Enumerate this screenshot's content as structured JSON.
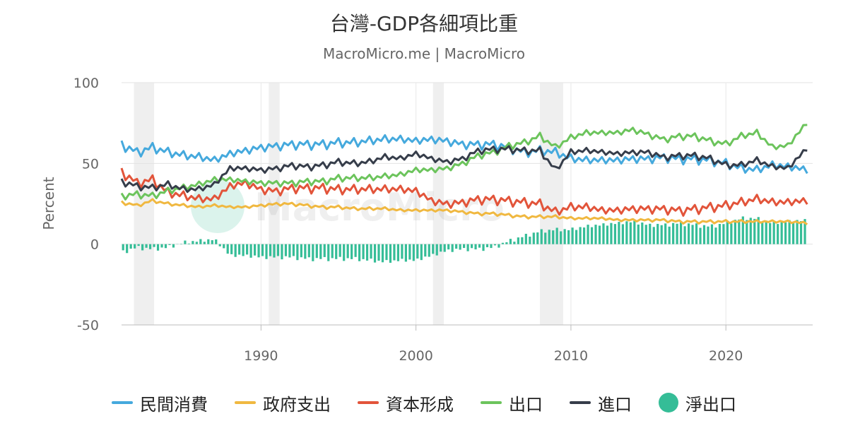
{
  "chart_data": {
    "type": "line",
    "title": "台灣-GDP各細項比重",
    "subtitle": "MacroMicro.me | MacroMicro",
    "ylabel": "Percent",
    "xlabel": "",
    "ylim": [
      -50,
      100
    ],
    "xlim": [
      1981,
      2025.6
    ],
    "y_ticks": [
      "100",
      "50",
      "0",
      "-50"
    ],
    "x_ticks": [
      "1990",
      "2000",
      "2010",
      "2020"
    ],
    "watermark": "MacroMicro",
    "legend_position": "bottom",
    "grid": true,
    "shaded_periods": [
      [
        1981.8,
        1983.1
      ],
      [
        1990.5,
        1991.2
      ],
      [
        2001.1,
        2001.8
      ],
      [
        2008.0,
        2009.5
      ]
    ],
    "series": [
      {
        "name": "民間消費",
        "kind": "line",
        "color": "#45a9dd",
        "points": [
          [
            1981,
            62
          ],
          [
            1982,
            57
          ],
          [
            1983,
            60
          ],
          [
            1984,
            57
          ],
          [
            1985,
            55
          ],
          [
            1986,
            54
          ],
          [
            1987,
            52
          ],
          [
            1988,
            56
          ],
          [
            1989,
            58
          ],
          [
            1990,
            60
          ],
          [
            1991,
            61
          ],
          [
            1992,
            62
          ],
          [
            1993,
            62
          ],
          [
            1994,
            62
          ],
          [
            1995,
            63
          ],
          [
            1996,
            63
          ],
          [
            1997,
            64
          ],
          [
            1998,
            65
          ],
          [
            1999,
            65
          ],
          [
            2000,
            64
          ],
          [
            2001,
            65
          ],
          [
            2002,
            64
          ],
          [
            2003,
            62
          ],
          [
            2004,
            62
          ],
          [
            2005,
            62
          ],
          [
            2006,
            60
          ],
          [
            2007,
            57
          ],
          [
            2008,
            58
          ],
          [
            2009,
            57
          ],
          [
            2010,
            53
          ],
          [
            2011,
            52
          ],
          [
            2012,
            52
          ],
          [
            2013,
            52
          ],
          [
            2014,
            53
          ],
          [
            2015,
            53
          ],
          [
            2016,
            54
          ],
          [
            2017,
            53
          ],
          [
            2018,
            53
          ],
          [
            2019,
            52
          ],
          [
            2020,
            50
          ],
          [
            2021,
            47
          ],
          [
            2022,
            46
          ],
          [
            2023,
            49
          ],
          [
            2024,
            48
          ],
          [
            2025.3,
            46
          ]
        ]
      },
      {
        "name": "政府支出",
        "kind": "line",
        "color": "#f0b840",
        "points": [
          [
            1981,
            26
          ],
          [
            1982,
            24
          ],
          [
            1983,
            27
          ],
          [
            1984,
            25
          ],
          [
            1985,
            24
          ],
          [
            1986,
            23
          ],
          [
            1987,
            24
          ],
          [
            1988,
            23
          ],
          [
            1989,
            23
          ],
          [
            1990,
            24
          ],
          [
            1991,
            25
          ],
          [
            1992,
            25
          ],
          [
            1993,
            24
          ],
          [
            1994,
            23
          ],
          [
            1995,
            23
          ],
          [
            1996,
            22
          ],
          [
            1997,
            22
          ],
          [
            1998,
            22
          ],
          [
            1999,
            21
          ],
          [
            2000,
            21
          ],
          [
            2001,
            21
          ],
          [
            2002,
            21
          ],
          [
            2003,
            20
          ],
          [
            2004,
            19
          ],
          [
            2005,
            19
          ],
          [
            2006,
            18
          ],
          [
            2007,
            17
          ],
          [
            2008,
            17
          ],
          [
            2009,
            17
          ],
          [
            2010,
            16
          ],
          [
            2011,
            16
          ],
          [
            2012,
            16
          ],
          [
            2013,
            15
          ],
          [
            2014,
            15
          ],
          [
            2015,
            15
          ],
          [
            2016,
            15
          ],
          [
            2017,
            14
          ],
          [
            2018,
            14
          ],
          [
            2019,
            14
          ],
          [
            2020,
            14
          ],
          [
            2021,
            14
          ],
          [
            2022,
            14
          ],
          [
            2023,
            14
          ],
          [
            2024,
            14
          ],
          [
            2025.3,
            13
          ]
        ]
      },
      {
        "name": "資本形成",
        "kind": "line",
        "color": "#e2543a",
        "points": [
          [
            1981,
            45
          ],
          [
            1982,
            38
          ],
          [
            1983,
            40
          ],
          [
            1984,
            32
          ],
          [
            1985,
            30
          ],
          [
            1986,
            28
          ],
          [
            1987,
            28
          ],
          [
            1988,
            36
          ],
          [
            1989,
            38
          ],
          [
            1990,
            34
          ],
          [
            1991,
            33
          ],
          [
            1992,
            35
          ],
          [
            1993,
            35
          ],
          [
            1994,
            35
          ],
          [
            1995,
            34
          ],
          [
            1996,
            34
          ],
          [
            1997,
            34
          ],
          [
            1998,
            34
          ],
          [
            1999,
            34
          ],
          [
            2000,
            33
          ],
          [
            2001,
            27
          ],
          [
            2002,
            25
          ],
          [
            2003,
            26
          ],
          [
            2004,
            28
          ],
          [
            2005,
            28
          ],
          [
            2006,
            27
          ],
          [
            2007,
            26
          ],
          [
            2008,
            25
          ],
          [
            2009,
            20
          ],
          [
            2010,
            23
          ],
          [
            2011,
            23
          ],
          [
            2012,
            21
          ],
          [
            2013,
            21
          ],
          [
            2014,
            22
          ],
          [
            2015,
            22
          ],
          [
            2016,
            22
          ],
          [
            2017,
            21
          ],
          [
            2018,
            22
          ],
          [
            2019,
            23
          ],
          [
            2020,
            24
          ],
          [
            2021,
            26
          ],
          [
            2022,
            28
          ],
          [
            2023,
            26
          ],
          [
            2024,
            26
          ],
          [
            2025.3,
            27
          ]
        ]
      },
      {
        "name": "出口",
        "kind": "line",
        "color": "#6cc45c",
        "points": [
          [
            1981,
            30
          ],
          [
            1982,
            31
          ],
          [
            1983,
            30
          ],
          [
            1984,
            33
          ],
          [
            1985,
            35
          ],
          [
            1986,
            37
          ],
          [
            1987,
            40
          ],
          [
            1988,
            40
          ],
          [
            1989,
            39
          ],
          [
            1990,
            38
          ],
          [
            1991,
            38
          ],
          [
            1992,
            38
          ],
          [
            1993,
            39
          ],
          [
            1994,
            39
          ],
          [
            1995,
            41
          ],
          [
            1996,
            41
          ],
          [
            1997,
            41
          ],
          [
            1998,
            42
          ],
          [
            1999,
            43
          ],
          [
            2000,
            46
          ],
          [
            2001,
            46
          ],
          [
            2002,
            47
          ],
          [
            2003,
            50
          ],
          [
            2004,
            55
          ],
          [
            2005,
            57
          ],
          [
            2006,
            61
          ],
          [
            2007,
            63
          ],
          [
            2008,
            67
          ],
          [
            2009,
            60
          ],
          [
            2010,
            66
          ],
          [
            2011,
            69
          ],
          [
            2012,
            69
          ],
          [
            2013,
            69
          ],
          [
            2014,
            71
          ],
          [
            2015,
            68
          ],
          [
            2016,
            65
          ],
          [
            2017,
            67
          ],
          [
            2018,
            67
          ],
          [
            2019,
            64
          ],
          [
            2020,
            62
          ],
          [
            2021,
            67
          ],
          [
            2022,
            69
          ],
          [
            2023,
            60
          ],
          [
            2024,
            61
          ],
          [
            2025.3,
            76
          ]
        ]
      },
      {
        "name": "進口",
        "kind": "line",
        "color": "#363d4a",
        "points": [
          [
            1981,
            39
          ],
          [
            1982,
            36
          ],
          [
            1983,
            35
          ],
          [
            1984,
            37
          ],
          [
            1985,
            34
          ],
          [
            1986,
            34
          ],
          [
            1987,
            37
          ],
          [
            1988,
            47
          ],
          [
            1989,
            47
          ],
          [
            1990,
            46
          ],
          [
            1991,
            47
          ],
          [
            1992,
            49
          ],
          [
            1993,
            48
          ],
          [
            1994,
            49
          ],
          [
            1995,
            51
          ],
          [
            1996,
            50
          ],
          [
            1997,
            51
          ],
          [
            1998,
            54
          ],
          [
            1999,
            53
          ],
          [
            2000,
            56
          ],
          [
            2001,
            53
          ],
          [
            2002,
            51
          ],
          [
            2003,
            53
          ],
          [
            2004,
            58
          ],
          [
            2005,
            59
          ],
          [
            2006,
            59
          ],
          [
            2007,
            58
          ],
          [
            2008,
            58
          ],
          [
            2009,
            46
          ],
          [
            2010,
            57
          ],
          [
            2011,
            58
          ],
          [
            2012,
            57
          ],
          [
            2013,
            56
          ],
          [
            2014,
            57
          ],
          [
            2015,
            57
          ],
          [
            2016,
            54
          ],
          [
            2017,
            55
          ],
          [
            2018,
            55
          ],
          [
            2019,
            53
          ],
          [
            2020,
            49
          ],
          [
            2021,
            49
          ],
          [
            2022,
            52
          ],
          [
            2023,
            48
          ],
          [
            2024,
            47
          ],
          [
            2025.3,
            60
          ]
        ]
      },
      {
        "name": "淨出口",
        "kind": "bar",
        "color": "#35bd97",
        "points": [
          [
            1981,
            -5
          ],
          [
            1982,
            -2
          ],
          [
            1983,
            -3
          ],
          [
            1984,
            -2
          ],
          [
            1985,
            1
          ],
          [
            1986,
            2
          ],
          [
            1987,
            3
          ],
          [
            1988,
            -7
          ],
          [
            1989,
            -7
          ],
          [
            1990,
            -8
          ],
          [
            1991,
            -8
          ],
          [
            1992,
            -8
          ],
          [
            1993,
            -9
          ],
          [
            1994,
            -9
          ],
          [
            1995,
            -9
          ],
          [
            1996,
            -9
          ],
          [
            1997,
            -10
          ],
          [
            1998,
            -11
          ],
          [
            1999,
            -10
          ],
          [
            2000,
            -10
          ],
          [
            2001,
            -7
          ],
          [
            2002,
            -4
          ],
          [
            2003,
            -3
          ],
          [
            2004,
            -3
          ],
          [
            2005,
            -2
          ],
          [
            2006,
            2
          ],
          [
            2007,
            5
          ],
          [
            2008,
            8
          ],
          [
            2009,
            9
          ],
          [
            2010,
            9
          ],
          [
            2011,
            11
          ],
          [
            2012,
            12
          ],
          [
            2013,
            13
          ],
          [
            2014,
            14
          ],
          [
            2015,
            12
          ],
          [
            2016,
            12
          ],
          [
            2017,
            13
          ],
          [
            2018,
            12
          ],
          [
            2019,
            11
          ],
          [
            2020,
            13
          ],
          [
            2021,
            16
          ],
          [
            2022,
            16
          ],
          [
            2023,
            13
          ],
          [
            2024,
            14
          ],
          [
            2025.3,
            15
          ]
        ]
      }
    ]
  }
}
